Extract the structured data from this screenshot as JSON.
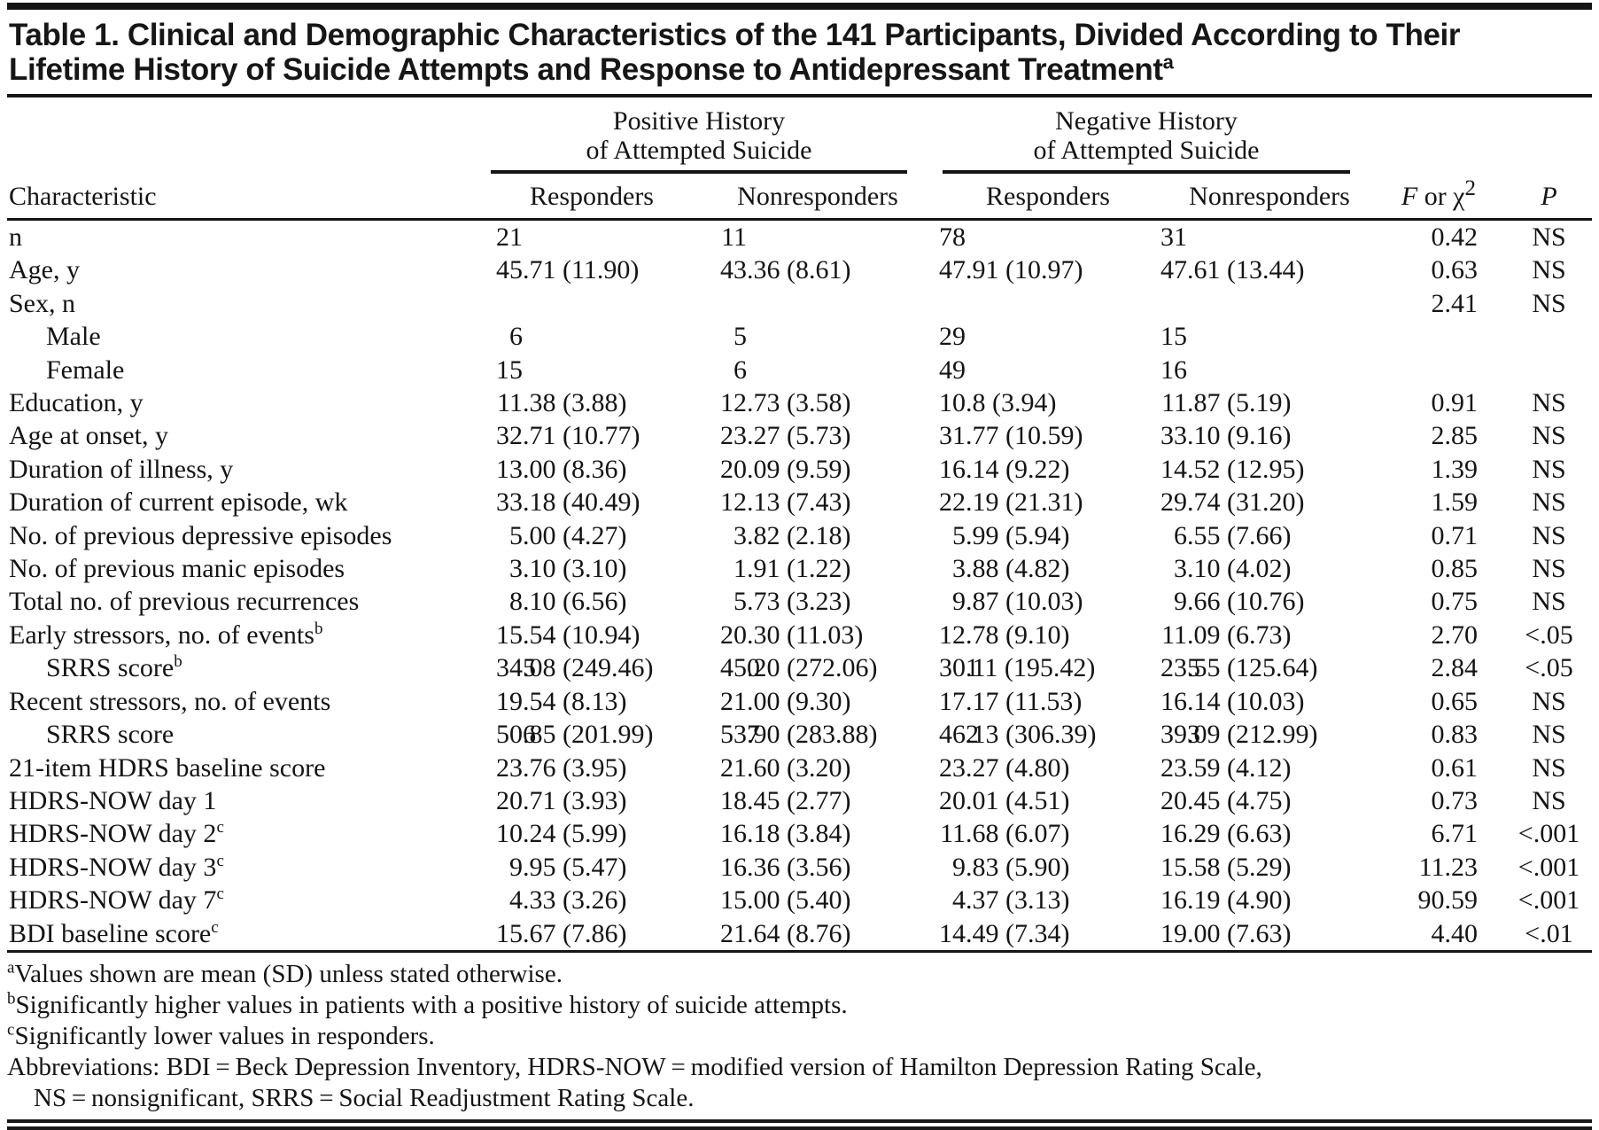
{
  "table": {
    "title": "Table 1. Clinical and Demographic Characteristics of the 141 Participants, Divided According to Their Lifetime History of Suicide Attempts and Response to Antidepressant Treatment",
    "title_footnote_marker": "a",
    "spanners": [
      {
        "line1": "Positive History",
        "line2": "of Attempted Suicide"
      },
      {
        "line1": "Negative History",
        "line2": "of Attempted Suicide"
      }
    ],
    "columns": {
      "characteristic": "Characteristic",
      "sub": [
        "Responders",
        "Nonresponders",
        "Responders",
        "Nonresponders"
      ],
      "stat": {
        "f": "F",
        "mid": " or χ",
        "sup": "2"
      },
      "p": "P"
    },
    "rows": [
      {
        "label": "n",
        "sup": "",
        "indent": false,
        "values": [
          "21",
          "11",
          "78",
          "31"
        ],
        "stat": "0.42",
        "p": "NS"
      },
      {
        "label": "Age, y",
        "sup": "",
        "indent": false,
        "values": [
          "45.71 (11.90)",
          "43.36 (8.61)",
          "47.91 (10.97)",
          "47.61 (13.44)"
        ],
        "stat": "0.63",
        "p": "NS"
      },
      {
        "label": "Sex, n",
        "sup": "",
        "indent": false,
        "values": [
          "",
          "",
          "",
          ""
        ],
        "stat": "2.41",
        "p": "NS"
      },
      {
        "label": "Male",
        "sup": "",
        "indent": true,
        "values": [
          "6",
          "5",
          "29",
          "15"
        ],
        "stat": "",
        "p": ""
      },
      {
        "label": "Female",
        "sup": "",
        "indent": true,
        "values": [
          "15",
          "6",
          "49",
          "16"
        ],
        "stat": "",
        "p": ""
      },
      {
        "label": "Education, y",
        "sup": "",
        "indent": false,
        "values": [
          "11.38 (3.88)",
          "12.73 (3.58)",
          "10.8 (3.94)",
          "11.87 (5.19)"
        ],
        "stat": "0.91",
        "p": "NS"
      },
      {
        "label": "Age at onset, y",
        "sup": "",
        "indent": false,
        "values": [
          "32.71 (10.77)",
          "23.27 (5.73)",
          "31.77 (10.59)",
          "33.10 (9.16)"
        ],
        "stat": "2.85",
        "p": "NS"
      },
      {
        "label": "Duration of illness, y",
        "sup": "",
        "indent": false,
        "values": [
          "13.00 (8.36)",
          "20.09 (9.59)",
          "16.14 (9.22)",
          "14.52 (12.95)"
        ],
        "stat": "1.39",
        "p": "NS"
      },
      {
        "label": "Duration of current episode, wk",
        "sup": "",
        "indent": false,
        "values": [
          "33.18 (40.49)",
          "12.13 (7.43)",
          "22.19 (21.31)",
          "29.74 (31.20)"
        ],
        "stat": "1.59",
        "p": "NS"
      },
      {
        "label": "No. of previous depressive episodes",
        "sup": "",
        "indent": false,
        "values": [
          "5.00 (4.27)",
          "3.82 (2.18)",
          "5.99 (5.94)",
          "6.55 (7.66)"
        ],
        "stat": "0.71",
        "p": "NS"
      },
      {
        "label": "No. of previous manic episodes",
        "sup": "",
        "indent": false,
        "values": [
          "3.10 (3.10)",
          "1.91 (1.22)",
          "3.88 (4.82)",
          "3.10 (4.02)"
        ],
        "stat": "0.85",
        "p": "NS"
      },
      {
        "label": "Total no. of previous recurrences",
        "sup": "",
        "indent": false,
        "values": [
          "8.10 (6.56)",
          "5.73 (3.23)",
          "9.87 (10.03)",
          "9.66 (10.76)"
        ],
        "stat": "0.75",
        "p": "NS"
      },
      {
        "label": "Early stressors, no. of events",
        "sup": "b",
        "indent": false,
        "values": [
          "15.54 (10.94)",
          "20.30 (11.03)",
          "12.78 (9.10)",
          "11.09 (6.73)"
        ],
        "stat": "2.70",
        "p": "<.05"
      },
      {
        "label": "SRRS score",
        "sup": "b",
        "indent": true,
        "values": [
          "345.08 (249.46)",
          "450.20 (272.06)",
          "301.11 (195.42)",
          "235.55 (125.64)"
        ],
        "stat": "2.84",
        "p": "<.05"
      },
      {
        "label": "Recent stressors, no. of events",
        "sup": "",
        "indent": false,
        "values": [
          "19.54 (8.13)",
          "21.00 (9.30)",
          "17.17 (11.53)",
          "16.14 (10.03)"
        ],
        "stat": "0.65",
        "p": "NS"
      },
      {
        "label": "SRRS score",
        "sup": "",
        "indent": true,
        "values": [
          "506.85 (201.99)",
          "537.90 (283.88)",
          "462.13 (306.39)",
          "393.09 (212.99)"
        ],
        "stat": "0.83",
        "p": "NS"
      },
      {
        "label": "21-item HDRS baseline score",
        "sup": "",
        "indent": false,
        "values": [
          "23.76 (3.95)",
          "21.60 (3.20)",
          "23.27 (4.80)",
          "23.59 (4.12)"
        ],
        "stat": "0.61",
        "p": "NS"
      },
      {
        "label": "HDRS-NOW day 1",
        "sup": "",
        "indent": false,
        "values": [
          "20.71 (3.93)",
          "18.45 (2.77)",
          "20.01 (4.51)",
          "20.45 (4.75)"
        ],
        "stat": "0.73",
        "p": "NS"
      },
      {
        "label": "HDRS-NOW day 2",
        "sup": "c",
        "indent": false,
        "values": [
          "10.24 (5.99)",
          "16.18 (3.84)",
          "11.68 (6.07)",
          "16.29 (6.63)"
        ],
        "stat": "6.71",
        "p": "<.001"
      },
      {
        "label": "HDRS-NOW day 3",
        "sup": "c",
        "indent": false,
        "values": [
          "9.95 (5.47)",
          "16.36 (3.56)",
          "9.83 (5.90)",
          "15.58 (5.29)"
        ],
        "stat": "11.23",
        "p": "<.001"
      },
      {
        "label": "HDRS-NOW day 7",
        "sup": "c",
        "indent": false,
        "values": [
          "4.33 (3.26)",
          "15.00 (5.40)",
          "4.37 (3.13)",
          "16.19 (4.90)"
        ],
        "stat": "90.59",
        "p": "<.001"
      },
      {
        "label": "BDI baseline score",
        "sup": "c",
        "indent": false,
        "values": [
          "15.67 (7.86)",
          "21.64 (8.76)",
          "14.49 (7.34)",
          "19.00 (7.63)"
        ],
        "stat": "4.40",
        "p": "<.01"
      }
    ]
  },
  "footnotes": [
    {
      "marker": "a",
      "text": "Values shown are mean (SD) unless stated otherwise.",
      "indent": false
    },
    {
      "marker": "b",
      "text": "Significantly higher values in patients with a positive history of suicide attempts.",
      "indent": false
    },
    {
      "marker": "c",
      "text": "Significantly lower values in responders.",
      "indent": false
    },
    {
      "marker": "",
      "text": "Abbreviations: BDI = Beck Depression Inventory, HDRS-NOW = modified version of Hamilton Depression Rating Scale,",
      "indent": false
    },
    {
      "marker": "",
      "text": "NS = nonsignificant, SRRS = Social Readjustment Rating Scale.",
      "indent": true
    }
  ]
}
